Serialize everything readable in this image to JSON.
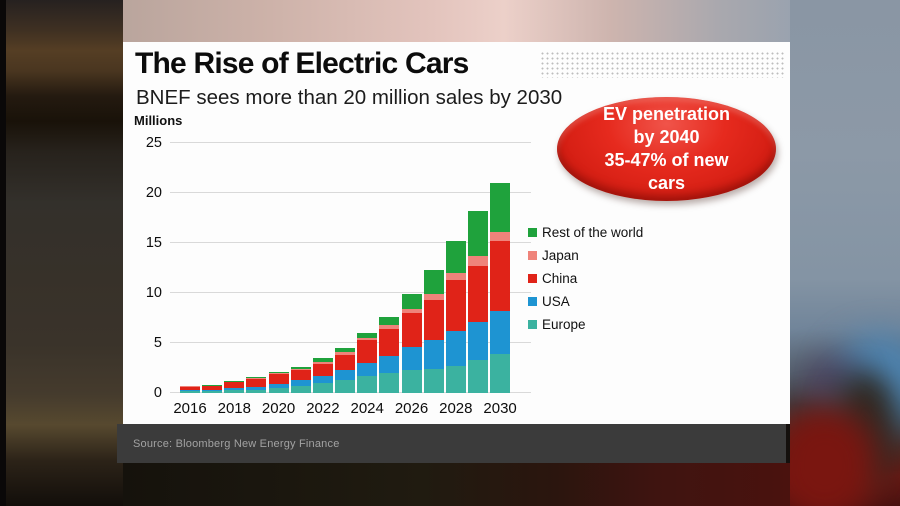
{
  "card": {
    "title": "The Rise of Electric Cars",
    "subtitle": "BNEF sees more than 20 million sales by 2030",
    "unit_label": "Millions",
    "badge": {
      "lines": [
        "EV penetration",
        "by 2040",
        "35-47% of new",
        "cars"
      ],
      "color": "#e02318"
    },
    "source": "Source: Bloomberg New Energy Finance"
  },
  "chart_data": {
    "type": "bar",
    "stacked": true,
    "title": "The Rise of Electric Cars",
    "subtitle": "BNEF sees more than 20 million sales by 2030",
    "ylabel": "Millions",
    "ylim": [
      0,
      25
    ],
    "yticks": [
      0,
      5,
      10,
      15,
      20,
      25
    ],
    "grid": true,
    "legend_position": "right",
    "categories": [
      "2016",
      "2017",
      "2018",
      "2019",
      "2020",
      "2021",
      "2022",
      "2023",
      "2024",
      "2025",
      "2026",
      "2027",
      "2028",
      "2029",
      "2030"
    ],
    "xtick_labels": [
      "2016",
      "2018",
      "2020",
      "2022",
      "2024",
      "2026",
      "2028",
      "2030"
    ],
    "series": [
      {
        "name": "Europe",
        "color": "#3bb2a0",
        "values": [
          0.2,
          0.2,
          0.3,
          0.35,
          0.5,
          0.7,
          1.0,
          1.3,
          1.7,
          2.0,
          2.3,
          2.4,
          2.7,
          3.3,
          3.9
        ]
      },
      {
        "name": "USA",
        "color": "#1e94d2",
        "values": [
          0.15,
          0.15,
          0.25,
          0.3,
          0.45,
          0.6,
          0.75,
          1.0,
          1.3,
          1.7,
          2.3,
          2.9,
          3.5,
          3.8,
          4.3
        ]
      },
      {
        "name": "China",
        "color": "#e02318",
        "values": [
          0.3,
          0.35,
          0.55,
          0.8,
          1.0,
          1.0,
          1.2,
          1.5,
          2.3,
          2.75,
          3.4,
          4.0,
          5.1,
          5.6,
          7.0
        ]
      },
      {
        "name": "Japan",
        "color": "#ef837a",
        "values": [
          0.03,
          0.05,
          0.05,
          0.07,
          0.07,
          0.1,
          0.2,
          0.3,
          0.25,
          0.4,
          0.45,
          0.6,
          0.7,
          1.0,
          0.9
        ]
      },
      {
        "name": "Rest of the world",
        "color": "#1fa23c",
        "values": [
          0.02,
          0.05,
          0.05,
          0.08,
          0.08,
          0.2,
          0.35,
          0.4,
          0.45,
          0.75,
          1.45,
          2.4,
          3.2,
          4.5,
          4.9
        ]
      }
    ],
    "legend": [
      {
        "label": "Rest of the world",
        "color": "#1fa23c"
      },
      {
        "label": "Japan",
        "color": "#ef837a"
      },
      {
        "label": "China",
        "color": "#e02318"
      },
      {
        "label": "USA",
        "color": "#1e94d2"
      },
      {
        "label": "Europe",
        "color": "#3bb2a0"
      }
    ]
  }
}
